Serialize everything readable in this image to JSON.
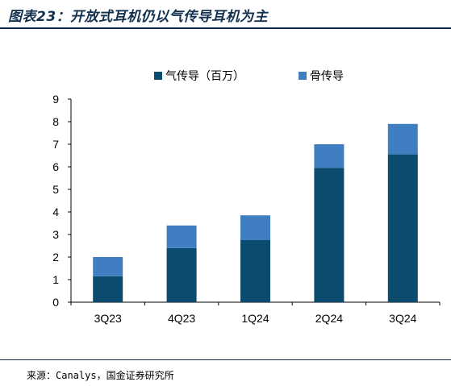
{
  "figure_title": "图表23：开放式耳机仍以气传导耳机为主",
  "source_note": "来源：Canalys，国金证券研究所",
  "chart_data": {
    "type": "bar",
    "stacked": true,
    "categories": [
      "3Q23",
      "4Q23",
      "1Q24",
      "2Q24",
      "3Q24"
    ],
    "series": [
      {
        "name": "气传导（百万）",
        "color": "#0b4c6e",
        "values": [
          1.15,
          2.4,
          2.75,
          5.95,
          6.55
        ]
      },
      {
        "name": "骨传导",
        "color": "#3f7fc1",
        "values": [
          0.85,
          1.0,
          1.1,
          1.05,
          1.35
        ]
      }
    ],
    "ylim": [
      0,
      9
    ],
    "yticks": [
      0,
      1,
      2,
      3,
      4,
      5,
      6,
      7,
      8,
      9
    ],
    "legend_position": "top-center",
    "grid": false
  }
}
